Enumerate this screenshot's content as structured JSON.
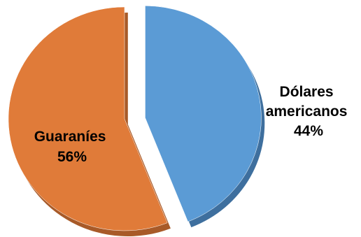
{
  "chart_data": {
    "type": "pie",
    "title": "",
    "slices": [
      {
        "label_lines": [
          "Dólares",
          "americanos"
        ],
        "value": 44,
        "value_text": "44%",
        "color": "#5b9bd5",
        "shadow_color": "#3e6f9e",
        "exploded": true
      },
      {
        "label_lines": [
          "Guaraníes"
        ],
        "value": 56,
        "value_text": "56%",
        "color": "#e07b39",
        "shadow_color": "#a85a28",
        "exploded": false
      }
    ],
    "legend": "none",
    "data_labels": "category and percent"
  }
}
